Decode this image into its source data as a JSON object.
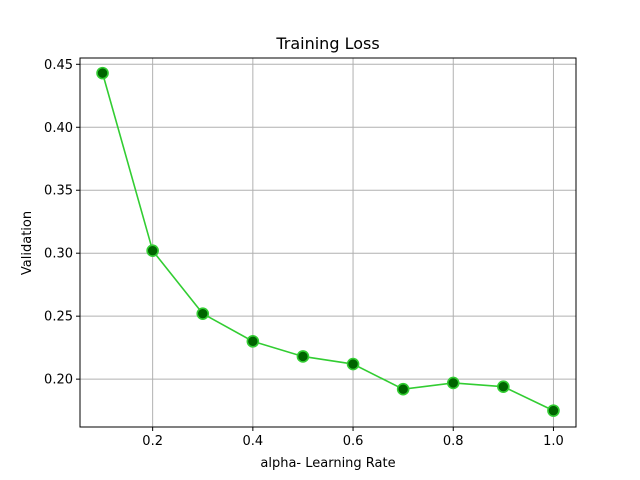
{
  "chart_data": {
    "type": "line",
    "title": "Training Loss",
    "xlabel": "alpha- Learning Rate",
    "ylabel": "Validation",
    "xlim": [
      0.055,
      1.045
    ],
    "ylim": [
      0.162,
      0.455
    ],
    "xticks": [
      0.2,
      0.4,
      0.6,
      0.8,
      1.0
    ],
    "xtick_labels": [
      "0.2",
      "0.4",
      "0.6",
      "0.8",
      "1.0"
    ],
    "yticks": [
      0.2,
      0.25,
      0.3,
      0.35,
      0.4,
      0.45
    ],
    "ytick_labels": [
      "0.20",
      "0.25",
      "0.30",
      "0.35",
      "0.40",
      "0.45"
    ],
    "grid": true,
    "series": [
      {
        "x": [
          0.1,
          0.2,
          0.3,
          0.4,
          0.5,
          0.6,
          0.7,
          0.8,
          0.9,
          1.0
        ],
        "y": [
          0.443,
          0.302,
          0.252,
          0.23,
          0.218,
          0.212,
          0.192,
          0.197,
          0.194,
          0.175
        ],
        "line_color": "#32cd32",
        "marker_face": "#006400",
        "marker_edge": "#32cd32"
      }
    ]
  }
}
